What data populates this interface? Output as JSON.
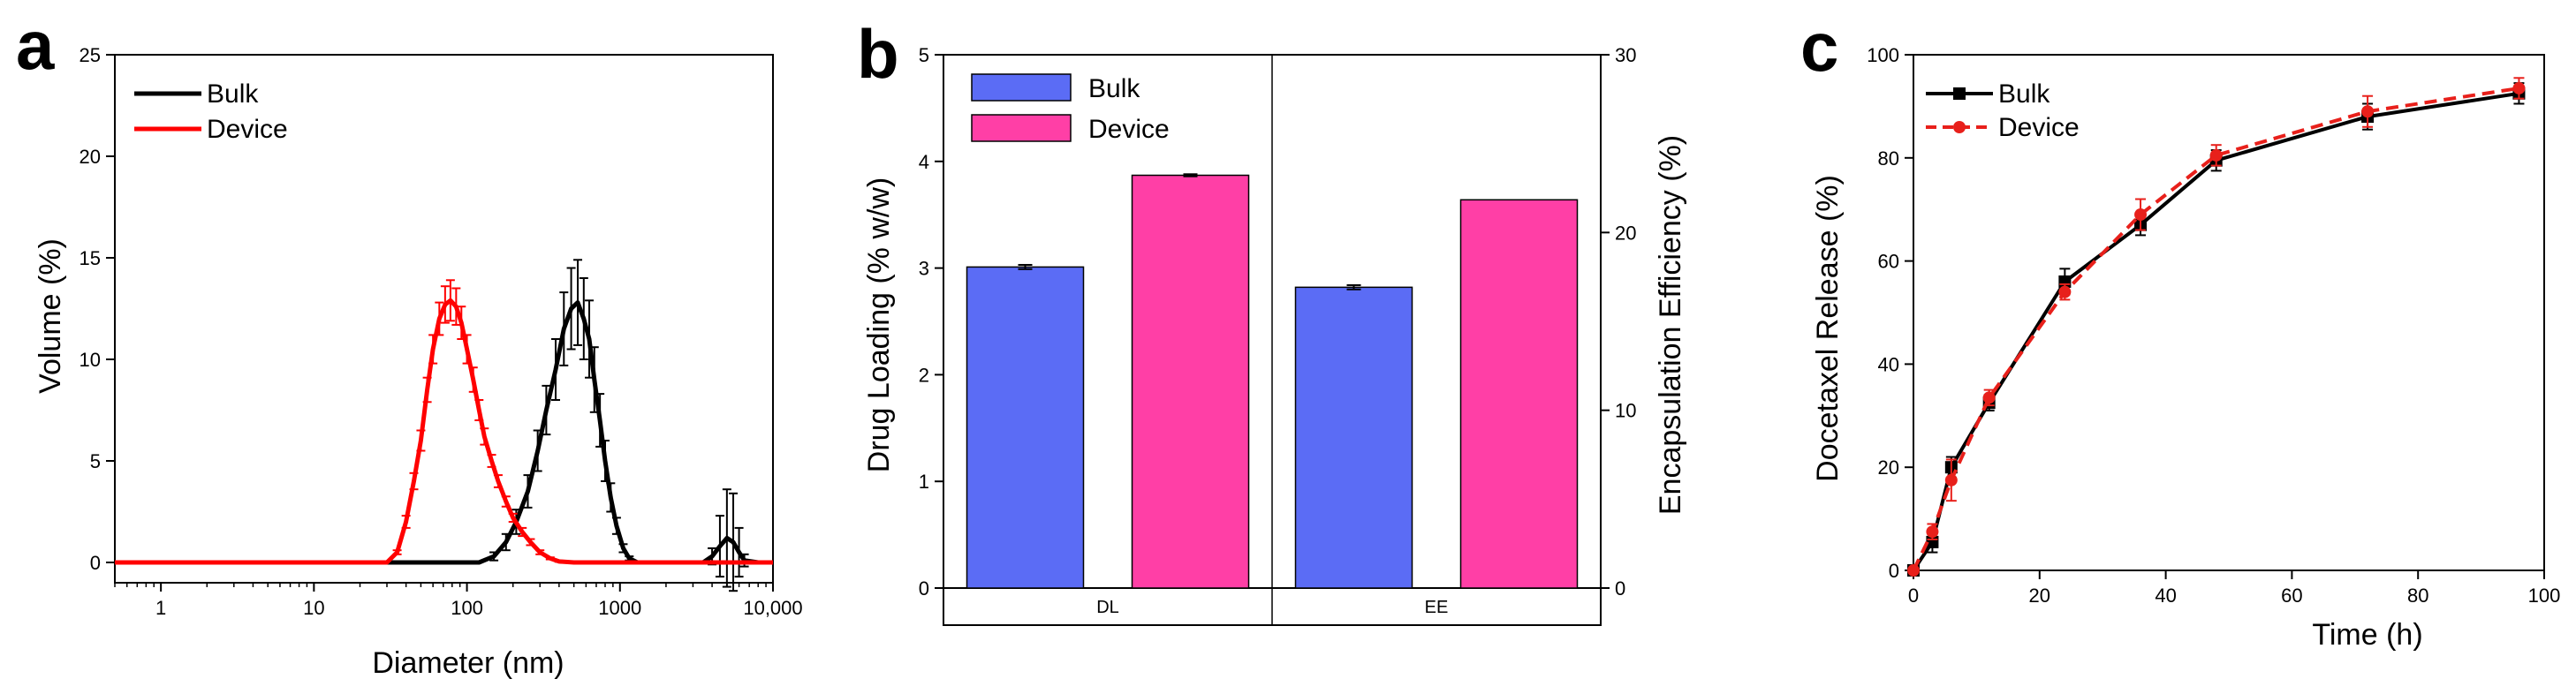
{
  "panels": [
    "a",
    "b",
    "c"
  ],
  "colors": {
    "bulk_a": "#000000",
    "device_a": "#ff0000",
    "bulk_b": "#5b6cf5",
    "device_b": "#ff3fa6",
    "bulk_c": "#000000",
    "device_c": "#e8201b"
  },
  "chart_data": [
    {
      "panel": "a",
      "type": "line",
      "xlabel": "Diameter (nm)",
      "ylabel": "Volume (%)",
      "xscale": "log",
      "xlim": [
        0.5,
        10000
      ],
      "ylim": [
        -1,
        25
      ],
      "xticks": [
        1,
        10,
        100,
        1000,
        10000
      ],
      "xtick_labels": [
        "1",
        "10",
        "100",
        "1000",
        "10,000"
      ],
      "yticks": [
        0,
        5,
        10,
        15,
        20,
        25
      ],
      "legend": "top-left",
      "series": [
        {
          "name": "Bulk",
          "x": [
            0.5,
            120,
            150,
            180,
            210,
            250,
            290,
            330,
            380,
            430,
            480,
            530,
            580,
            630,
            680,
            740,
            800,
            870,
            950,
            1050,
            1150,
            1300,
            1500,
            3500,
            4000,
            4500,
            5000,
            5500,
            6000,
            6500,
            8000
          ],
          "y": [
            0,
            0,
            0.3,
            1,
            2,
            3.5,
            5.5,
            7.5,
            9.5,
            11.5,
            12.5,
            12.8,
            12,
            11,
            9,
            7,
            5,
            3.2,
            1.8,
            0.7,
            0.2,
            0,
            0,
            0,
            0.3,
            0.8,
            1.2,
            1.0,
            0.5,
            0.1,
            0
          ],
          "err": [
            0,
            0,
            0.2,
            0.4,
            0.6,
            0.8,
            1.0,
            1.2,
            1.5,
            1.8,
            2.0,
            2.1,
            2.0,
            1.9,
            1.6,
            1.3,
            1.0,
            0.7,
            0.4,
            0.2,
            0.1,
            0,
            0,
            0,
            0.4,
            1.5,
            2.4,
            2.4,
            1.2,
            0.3,
            0
          ]
        },
        {
          "name": "Device",
          "x": [
            0.5,
            30,
            35,
            40,
            45,
            50,
            55,
            60,
            66,
            72,
            78,
            85,
            92,
            100,
            110,
            120,
            130,
            145,
            160,
            180,
            200,
            230,
            260,
            300,
            350,
            400,
            500,
            10000
          ],
          "y": [
            0,
            0,
            0.5,
            2,
            4,
            6,
            8.5,
            10.5,
            12,
            12.7,
            12.9,
            12.6,
            11.8,
            10.5,
            9,
            7.5,
            6.2,
            5,
            4,
            3,
            2.2,
            1.5,
            1,
            0.5,
            0.2,
            0.05,
            0,
            0
          ],
          "err": [
            0,
            0,
            0.1,
            0.3,
            0.4,
            0.5,
            0.6,
            0.7,
            0.8,
            0.9,
            1.0,
            0.9,
            0.8,
            0.7,
            0.6,
            0.5,
            0.4,
            0.3,
            0.3,
            0.25,
            0.2,
            0.2,
            0.15,
            0.1,
            0.05,
            0.02,
            0,
            0
          ]
        }
      ]
    },
    {
      "panel": "b",
      "type": "bar",
      "categories": [
        "DL",
        "EE"
      ],
      "ylabel": "Drug Loading (% w/w)",
      "ylabel_right": "Encapsulation Efficiency (%)",
      "ylim": [
        0,
        5
      ],
      "ylim_right": [
        0,
        30
      ],
      "yticks": [
        0,
        1,
        2,
        3,
        4,
        5
      ],
      "yticks_right": [
        0,
        10,
        20,
        30
      ],
      "legend": "top-left",
      "series": [
        {
          "name": "Bulk",
          "values": [
            3.01,
            2.82
          ],
          "err": [
            0.02,
            0.02
          ]
        },
        {
          "name": "Device",
          "values": [
            3.87,
            3.64
          ],
          "err": [
            0.01,
            0
          ]
        }
      ]
    },
    {
      "panel": "c",
      "type": "line",
      "xlabel": "Time (h)",
      "ylabel": "Docetaxel Release (%)",
      "xlim": [
        0,
        100
      ],
      "ylim": [
        0,
        100
      ],
      "xticks": [
        0,
        20,
        40,
        60,
        80,
        100
      ],
      "yticks": [
        0,
        20,
        40,
        60,
        80,
        100
      ],
      "legend": "top-left",
      "series": [
        {
          "name": "Bulk",
          "x": [
            0,
            3,
            6,
            12,
            24,
            36,
            48,
            72,
            96
          ],
          "y": [
            0,
            5.5,
            20,
            32.5,
            56,
            67,
            79.5,
            88,
            92.5
          ],
          "err": [
            0,
            2,
            2,
            1.5,
            2.5,
            2,
            2,
            2.5,
            2
          ]
        },
        {
          "name": "Device",
          "x": [
            0,
            3,
            6,
            12,
            24,
            36,
            48,
            72,
            96
          ],
          "y": [
            0,
            7.5,
            17.5,
            33.5,
            54,
            69,
            80.5,
            89,
            93.5
          ],
          "err": [
            0,
            1.5,
            4,
            1.5,
            1.5,
            3,
            2,
            3,
            2
          ]
        }
      ]
    }
  ]
}
